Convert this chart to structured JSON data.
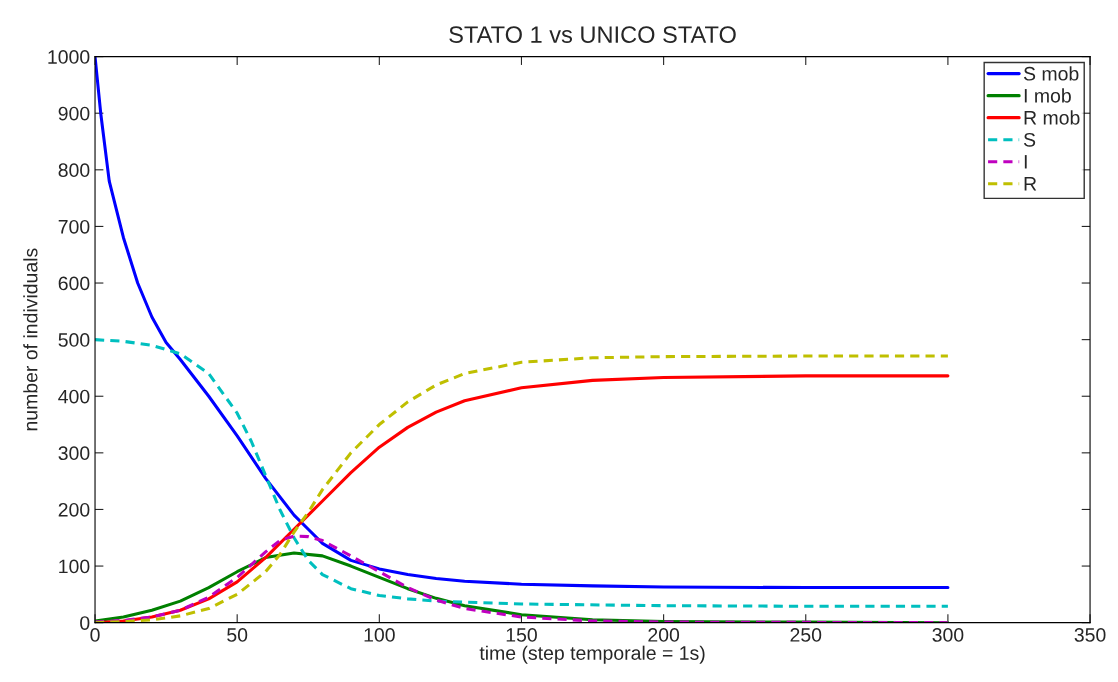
{
  "chart_data": {
    "type": "line",
    "title": "STATO 1 vs UNICO STATO",
    "xlabel": "time (step temporale = 1s)",
    "ylabel": "number of individuals",
    "xlim": [
      0,
      350
    ],
    "xticks": [
      0,
      50,
      100,
      150,
      200,
      250,
      300,
      350
    ],
    "ylim": [
      0,
      1000
    ],
    "yticks": [
      0,
      100,
      200,
      300,
      400,
      500,
      600,
      700,
      800,
      900,
      1000
    ],
    "grid": false,
    "legend": "top right",
    "series": [
      {
        "name": "S mob",
        "color": "#0000ff",
        "line_style": "solid",
        "x": [
          0,
          2,
          5,
          10,
          15,
          20,
          25,
          30,
          40,
          50,
          60,
          70,
          75,
          80,
          90,
          100,
          110,
          120,
          130,
          150,
          175,
          200,
          250,
          300
        ],
        "values": [
          1000,
          900,
          780,
          680,
          600,
          540,
          495,
          465,
          400,
          330,
          255,
          190,
          165,
          140,
          110,
          95,
          85,
          78,
          73,
          68,
          65,
          63,
          62,
          62
        ]
      },
      {
        "name": "I mob",
        "color": "#008000",
        "line_style": "solid",
        "x": [
          0,
          10,
          20,
          30,
          40,
          50,
          60,
          70,
          80,
          90,
          100,
          110,
          120,
          130,
          150,
          175,
          200,
          250,
          300
        ],
        "values": [
          3,
          10,
          22,
          38,
          62,
          90,
          115,
          123,
          118,
          100,
          80,
          60,
          43,
          30,
          14,
          5,
          2,
          1,
          0
        ]
      },
      {
        "name": "R mob",
        "color": "#ff0000",
        "line_style": "solid",
        "x": [
          0,
          10,
          20,
          30,
          40,
          50,
          60,
          70,
          75,
          80,
          90,
          100,
          110,
          120,
          130,
          150,
          175,
          200,
          250,
          300
        ],
        "values": [
          0,
          3,
          10,
          22,
          42,
          72,
          115,
          165,
          190,
          215,
          265,
          310,
          345,
          372,
          392,
          415,
          428,
          433,
          436,
          436
        ]
      },
      {
        "name": "S",
        "color": "#00bfbf",
        "line_style": "dashed",
        "x": [
          0,
          10,
          20,
          30,
          40,
          50,
          55,
          60,
          65,
          70,
          75,
          80,
          90,
          100,
          110,
          120,
          150,
          200,
          250,
          300
        ],
        "values": [
          500,
          497,
          490,
          475,
          440,
          370,
          320,
          260,
          200,
          150,
          110,
          85,
          60,
          48,
          42,
          38,
          33,
          30,
          29,
          29
        ]
      },
      {
        "name": "I",
        "color": "#bf00bf",
        "line_style": "dashed",
        "x": [
          0,
          10,
          20,
          30,
          40,
          50,
          60,
          65,
          70,
          75,
          80,
          90,
          100,
          110,
          120,
          130,
          150,
          175,
          200,
          300
        ],
        "values": [
          1,
          4,
          10,
          22,
          45,
          80,
          125,
          145,
          153,
          152,
          145,
          118,
          90,
          62,
          40,
          25,
          10,
          3,
          1,
          0
        ]
      },
      {
        "name": "R",
        "color": "#bfbf00",
        "line_style": "dashed",
        "x": [
          0,
          10,
          20,
          30,
          40,
          50,
          60,
          65,
          70,
          75,
          80,
          90,
          100,
          110,
          120,
          130,
          150,
          175,
          200,
          250,
          300
        ],
        "values": [
          0,
          2,
          5,
          12,
          25,
          50,
          90,
          120,
          160,
          195,
          235,
          300,
          350,
          390,
          420,
          440,
          460,
          468,
          470,
          471,
          471
        ]
      }
    ]
  }
}
